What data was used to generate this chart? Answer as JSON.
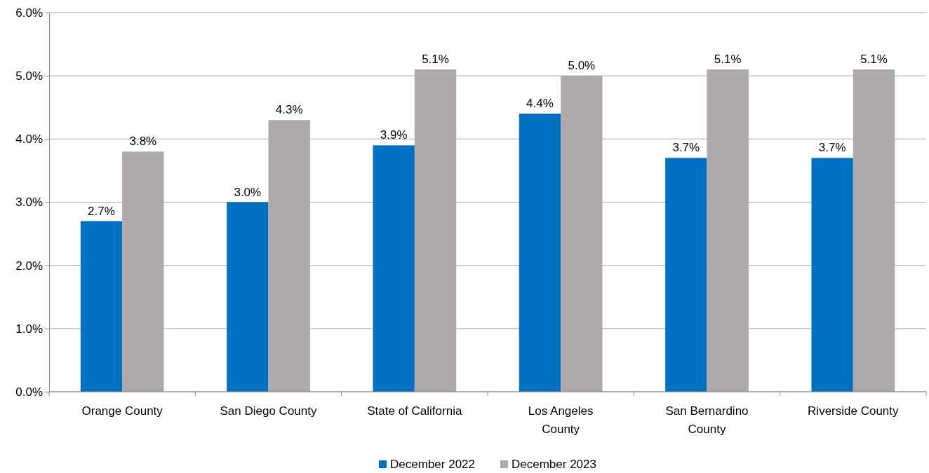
{
  "chart_data": {
    "type": "bar",
    "categories": [
      "Orange County",
      "San Diego County",
      "State of California",
      "Los Angeles County",
      "San Bernardino County",
      "Riverside County"
    ],
    "series": [
      {
        "name": "December 2022",
        "color": "#0070c0",
        "values": [
          2.7,
          3.0,
          3.9,
          4.4,
          3.7,
          3.7
        ],
        "value_labels": [
          "2.7%",
          "3.0%",
          "3.9%",
          "4.4%",
          "3.7%",
          "3.7%"
        ]
      },
      {
        "name": "December 2023",
        "color": "#aeaaaa",
        "values": [
          3.8,
          4.3,
          5.1,
          5.0,
          5.1,
          5.1
        ],
        "value_labels": [
          "3.8%",
          "4.3%",
          "5.1%",
          "5.0%",
          "5.1%",
          "5.1%"
        ]
      }
    ],
    "ylim": [
      0,
      6
    ],
    "yticks": [
      {
        "value": 0,
        "label": "0.0%"
      },
      {
        "value": 1,
        "label": "1.0%"
      },
      {
        "value": 2,
        "label": "2.0%"
      },
      {
        "value": 3,
        "label": "3.0%"
      },
      {
        "value": 4,
        "label": "4.0%"
      },
      {
        "value": 5,
        "label": "5.0%"
      },
      {
        "value": 6,
        "label": "6.0%"
      }
    ],
    "grid": "y",
    "legend": "bottom"
  }
}
